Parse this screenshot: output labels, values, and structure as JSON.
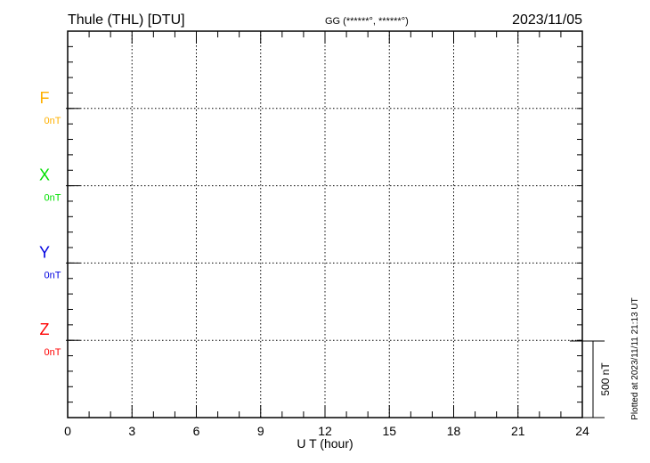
{
  "chart_data": {
    "type": "line",
    "title": "Thule (THL)  [DTU]",
    "subtitle": "GG (******°, ******°)",
    "date": "2023/11/05",
    "xlabel": "U T (hour)",
    "xlim": [
      0,
      24
    ],
    "xticks": [
      "0",
      "3",
      "6",
      "9",
      "12",
      "15",
      "18",
      "21",
      "24"
    ],
    "grid": true,
    "scale_bar": "500 nT",
    "footer": "Plotted at 2023/11/11 21:13 UT",
    "series": [
      {
        "name": "F",
        "baseline_label": "0nT",
        "color": "#ffb000",
        "values": []
      },
      {
        "name": "X",
        "baseline_label": "0nT",
        "color": "#00e000",
        "values": []
      },
      {
        "name": "Y",
        "baseline_label": "0nT",
        "color": "#0000e0",
        "values": []
      },
      {
        "name": "Z",
        "baseline_label": "0nT",
        "color": "#ff0000",
        "values": []
      }
    ]
  }
}
